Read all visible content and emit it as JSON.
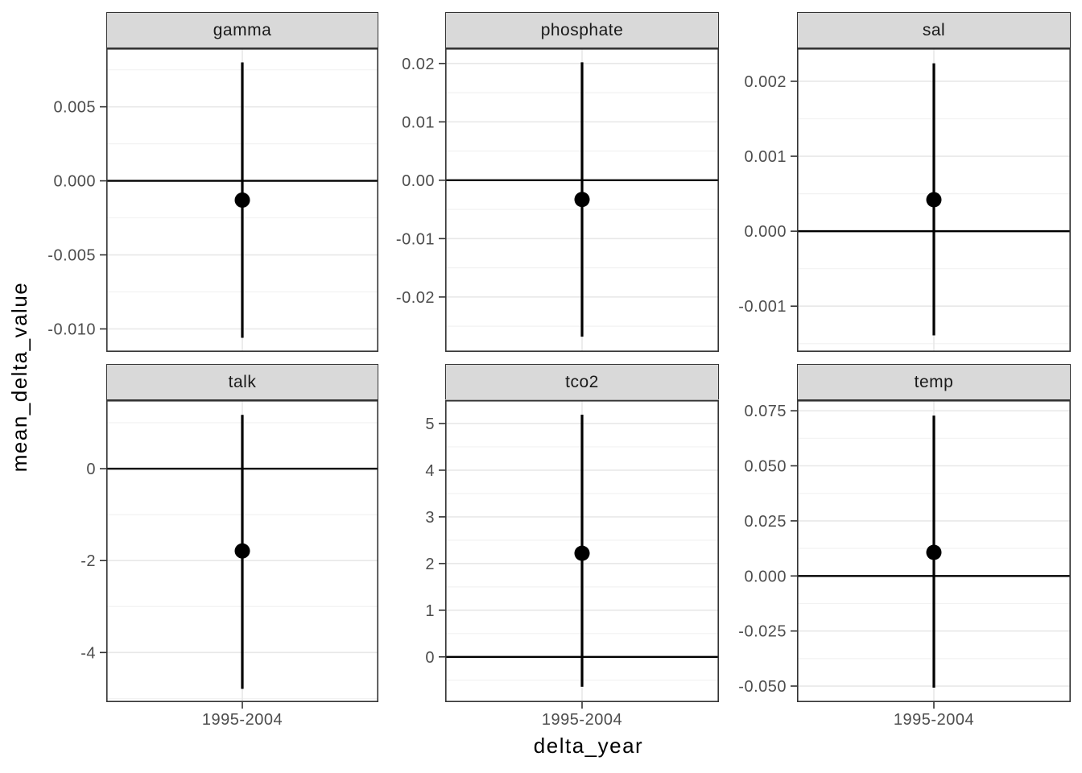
{
  "chart_data": {
    "type": "pointrange",
    "faceting": "2x3 facet grid, free y scales",
    "xlabel": "delta_year",
    "ylabel": "mean_delta_value",
    "x_category": "1995-2004",
    "panel_bg": "#ffffff",
    "strip_bg": "#d9d9d9",
    "panel_border": "#333333",
    "grid_major": "#e8e8e8",
    "grid_minor": "#f2f2f2",
    "tick_label_color": "#4d4d4d",
    "point_color": "#000000",
    "zero_line_color": "#000000",
    "facets": [
      {
        "label": "gamma",
        "estimate": -0.0013,
        "ci_low": -0.0106,
        "ci_high": 0.008,
        "domain": [
          -0.01155,
          0.00895
        ],
        "ticks": [
          {
            "v": 0.005,
            "label": "0.005"
          },
          {
            "v": 0.0,
            "label": "0.000"
          },
          {
            "v": -0.005,
            "label": "-0.005"
          },
          {
            "v": -0.01,
            "label": "-0.010"
          }
        ]
      },
      {
        "label": "phosphate",
        "estimate": -0.0033,
        "ci_low": -0.0268,
        "ci_high": 0.0202,
        "domain": [
          -0.0294,
          0.0226
        ],
        "ticks": [
          {
            "v": 0.02,
            "label": "0.02"
          },
          {
            "v": 0.01,
            "label": "0.01"
          },
          {
            "v": 0.0,
            "label": "0.00"
          },
          {
            "v": -0.01,
            "label": "-0.01"
          },
          {
            "v": -0.02,
            "label": "-0.02"
          }
        ]
      },
      {
        "label": "sal",
        "estimate": 0.00042,
        "ci_low": -0.00139,
        "ci_high": 0.00224,
        "domain": [
          -0.00161,
          0.00244
        ],
        "ticks": [
          {
            "v": 0.002,
            "label": "0.002"
          },
          {
            "v": 0.001,
            "label": "0.001"
          },
          {
            "v": 0.0,
            "label": "0.000"
          },
          {
            "v": -0.001,
            "label": "-0.001"
          }
        ]
      },
      {
        "label": "talk",
        "estimate": -1.79,
        "ci_low": -4.79,
        "ci_high": 1.17,
        "domain": [
          -5.08,
          1.49
        ],
        "ticks": [
          {
            "v": 0,
            "label": "0"
          },
          {
            "v": -2,
            "label": "-2"
          },
          {
            "v": -4,
            "label": "-4"
          }
        ]
      },
      {
        "label": "tco2",
        "estimate": 2.22,
        "ci_low": -0.64,
        "ci_high": 5.19,
        "domain": [
          -0.97,
          5.5
        ],
        "ticks": [
          {
            "v": 5,
            "label": "5"
          },
          {
            "v": 4,
            "label": "4"
          },
          {
            "v": 3,
            "label": "3"
          },
          {
            "v": 2,
            "label": "2"
          },
          {
            "v": 1,
            "label": "1"
          },
          {
            "v": 0,
            "label": "0"
          }
        ]
      },
      {
        "label": "temp",
        "estimate": 0.0107,
        "ci_low": -0.0507,
        "ci_high": 0.0728,
        "domain": [
          -0.0573,
          0.0798
        ],
        "ticks": [
          {
            "v": 0.075,
            "label": "0.075"
          },
          {
            "v": 0.05,
            "label": "0.050"
          },
          {
            "v": 0.025,
            "label": "0.025"
          },
          {
            "v": 0.0,
            "label": "0.000"
          },
          {
            "v": -0.025,
            "label": "-0.025"
          },
          {
            "v": -0.05,
            "label": "-0.050"
          }
        ]
      }
    ]
  }
}
